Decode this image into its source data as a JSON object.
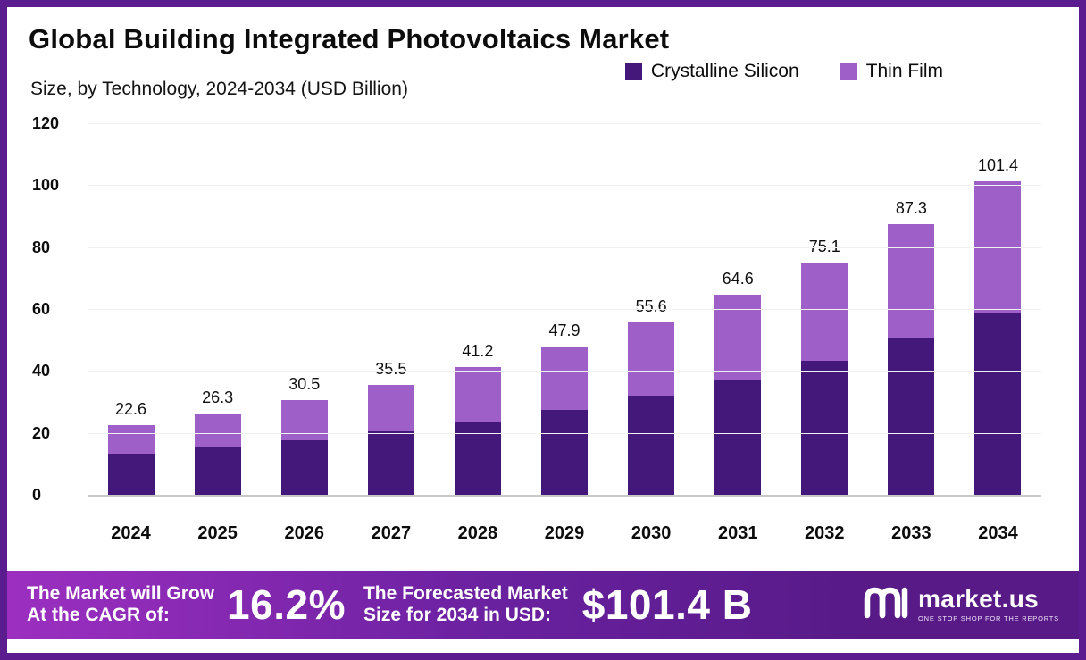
{
  "title": "Global Building Integrated Photovoltaics Market",
  "subtitle": "Size, by Technology, 2024-2034 (USD Billion)",
  "legend": {
    "crystalline_label": "Crystalline Silicon",
    "thin_film_label": "Thin Film"
  },
  "colors": {
    "crystalline": "#44187a",
    "thin_film": "#9f5fc9",
    "frame": "#5a1c8e",
    "banner_left": "#9c2fc0",
    "banner_right": "#571a87"
  },
  "chart_data": {
    "type": "bar",
    "stacked": true,
    "title": "Global Building Integrated Photovoltaics Market",
    "subtitle": "Size, by Technology, 2024-2034 (USD Billion)",
    "xlabel": "",
    "ylabel": "USD Billion",
    "ylim": [
      0,
      120
    ],
    "yticks": [
      0,
      20,
      40,
      60,
      80,
      100,
      120
    ],
    "grid": false,
    "legend_position": "top-right",
    "categories": [
      "2024",
      "2025",
      "2026",
      "2027",
      "2028",
      "2029",
      "2030",
      "2031",
      "2032",
      "2033",
      "2034"
    ],
    "series": [
      {
        "name": "Crystalline Silicon",
        "values": [
          13.2,
          15.3,
          17.7,
          20.4,
          23.7,
          27.5,
          31.9,
          37.1,
          43.3,
          50.4,
          58.7
        ]
      },
      {
        "name": "Thin Film",
        "values": [
          9.4,
          11.0,
          12.8,
          15.1,
          17.5,
          20.4,
          23.7,
          27.5,
          31.8,
          36.9,
          42.7
        ]
      }
    ],
    "totals": [
      22.6,
      26.3,
      30.5,
      35.5,
      41.2,
      47.9,
      55.6,
      64.6,
      75.1,
      87.3,
      101.4
    ]
  },
  "banner": {
    "grow_line1": "The Market will Grow",
    "grow_line2": "At the CAGR of:",
    "cagr_value": "16.2%",
    "forecast_line1": "The Forecasted Market",
    "forecast_line2": "Size for 2034 in USD:",
    "forecast_value": "$101.4 B",
    "brand": "market.us",
    "brand_tagline": "ONE STOP SHOP FOR THE REPORTS"
  }
}
